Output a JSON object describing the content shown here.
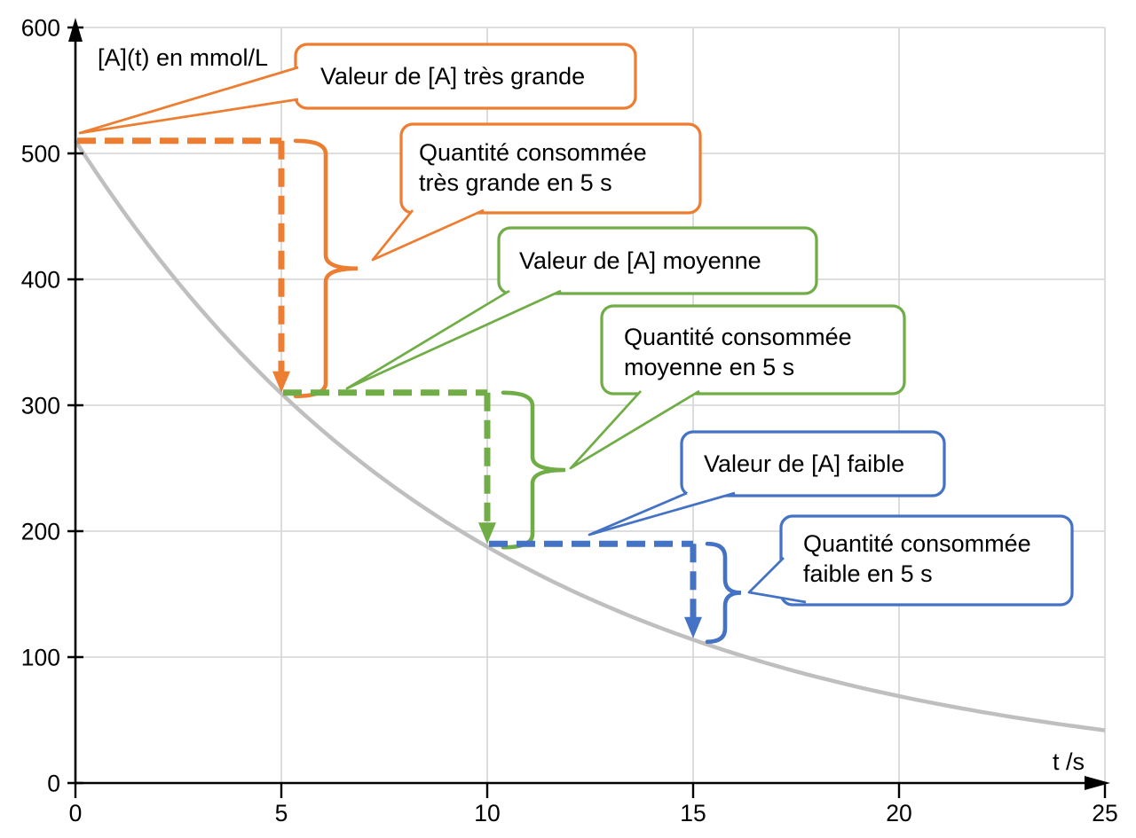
{
  "colors": {
    "orange": "#ED7D31",
    "green": "#70AD47",
    "blue": "#4472C4",
    "curve": "#BFBFBF",
    "grid": "#D9D9D9",
    "axis": "#000000"
  },
  "axes": {
    "y_label": "[A](t) en mmol/L",
    "x_label": "t /s"
  },
  "callouts": [
    {
      "id": "valeur-tres-grande",
      "color_key": "orange",
      "lines": [
        "Valeur de [A] très grande"
      ]
    },
    {
      "id": "quantite-tres-grande",
      "color_key": "orange",
      "lines": [
        "Quantité consommée",
        "très grande en 5 s"
      ]
    },
    {
      "id": "valeur-moyenne",
      "color_key": "green",
      "lines": [
        "Valeur de [A] moyenne"
      ]
    },
    {
      "id": "quantite-moyenne",
      "color_key": "green",
      "lines": [
        "Quantité consommée",
        "moyenne en 5 s"
      ]
    },
    {
      "id": "valeur-faible",
      "color_key": "blue",
      "lines": [
        "Valeur de [A] faible"
      ]
    },
    {
      "id": "quantite-faible",
      "color_key": "blue",
      "lines": [
        "Quantité consommée",
        "faible en 5 s"
      ]
    }
  ],
  "chart_data": {
    "type": "line",
    "title": "",
    "xlabel": "t /s",
    "ylabel": "[A](t) en mmol/L",
    "xlim": [
      0,
      25
    ],
    "ylim": [
      0,
      600
    ],
    "x_ticks": [
      0,
      5,
      10,
      15,
      20,
      25
    ],
    "y_ticks": [
      0,
      100,
      200,
      300,
      400,
      500,
      600
    ],
    "grid": true,
    "curve": {
      "name": "[A](t)",
      "model": "A(t) = A0 * exp(-t / tau)",
      "A0_mmol_per_L": 510,
      "tau_s": 10,
      "color": "#BFBFBF",
      "points": [
        {
          "t": 0,
          "A": 510
        },
        {
          "t": 5,
          "A": 309
        },
        {
          "t": 10,
          "A": 188
        },
        {
          "t": 15,
          "A": 114
        },
        {
          "t": 20,
          "A": 69
        },
        {
          "t": 25,
          "A": 42
        }
      ]
    },
    "guides": [
      {
        "color_key": "orange",
        "from": {
          "t": 0,
          "A": 510
        },
        "to": {
          "t": 5,
          "A": 310
        },
        "label_value": "Valeur de [A] très grande",
        "label_delta": "Quantité consommée très grande en 5 s"
      },
      {
        "color_key": "green",
        "from": {
          "t": 5,
          "A": 310
        },
        "to": {
          "t": 10,
          "A": 190
        },
        "label_value": "Valeur de [A] moyenne",
        "label_delta": "Quantité consommée moyenne en 5 s"
      },
      {
        "color_key": "blue",
        "from": {
          "t": 10,
          "A": 190
        },
        "to": {
          "t": 15,
          "A": 115
        },
        "label_value": "Valeur de [A] faible",
        "label_delta": "Quantité consommée faible en 5 s"
      }
    ]
  }
}
